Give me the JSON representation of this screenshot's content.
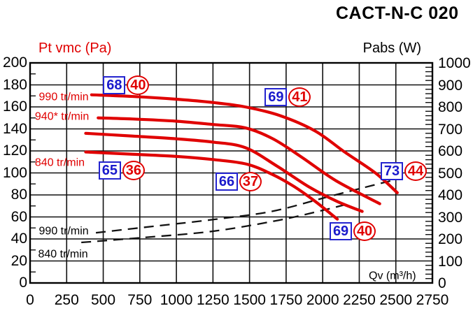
{
  "title": "CACT-N-C 020",
  "chart_data": {
    "type": "line",
    "grid": true,
    "x_axis": {
      "label": "Qv (m³/h)",
      "min": 0,
      "max": 2750,
      "ticks": [
        0,
        250,
        500,
        750,
        1000,
        1250,
        1500,
        1750,
        2000,
        2250,
        2500,
        2750
      ]
    },
    "y_left": {
      "label": "Pt vmc (Pa)",
      "min": 0,
      "max": 200,
      "ticks": [
        0,
        20,
        40,
        60,
        80,
        100,
        120,
        140,
        160,
        180,
        200
      ],
      "minor_step": 10
    },
    "y_right": {
      "label": "Pabs (W)",
      "min": 0,
      "max": 1000,
      "ticks": [
        0,
        100,
        200,
        300,
        400,
        500,
        600,
        700,
        800,
        900,
        1000
      ],
      "minor_step": 20
    },
    "fan_curves": [
      {
        "name": "990 tr/min",
        "color": "#e00000",
        "points": [
          [
            420,
            171
          ],
          [
            700,
            169.5
          ],
          [
            1000,
            167
          ],
          [
            1250,
            164
          ],
          [
            1470,
            160
          ],
          [
            1710,
            152
          ],
          [
            1950,
            138
          ],
          [
            2150,
            119
          ],
          [
            2360,
            100
          ],
          [
            2510,
            82
          ]
        ]
      },
      {
        "name": "940* tr/min",
        "color": "#e00000",
        "points": [
          [
            465,
            150
          ],
          [
            700,
            149
          ],
          [
            1000,
            147
          ],
          [
            1250,
            144
          ],
          [
            1470,
            141
          ],
          [
            1660,
            131
          ],
          [
            1860,
            114
          ],
          [
            2090,
            93
          ],
          [
            2390,
            72
          ]
        ]
      },
      {
        "name": "",
        "color": "#e00000",
        "points": [
          [
            380,
            136
          ],
          [
            700,
            133.5
          ],
          [
            1000,
            131
          ],
          [
            1250,
            128
          ],
          [
            1470,
            123
          ],
          [
            1690,
            106
          ],
          [
            1910,
            87
          ],
          [
            2100,
            74
          ],
          [
            2270,
            65
          ]
        ]
      },
      {
        "name": "840 tr/min",
        "color": "#e00000",
        "points": [
          [
            380,
            119
          ],
          [
            700,
            117
          ],
          [
            1000,
            115
          ],
          [
            1260,
            112
          ],
          [
            1480,
            108
          ],
          [
            1650,
            99
          ],
          [
            1800,
            88
          ],
          [
            1950,
            74
          ],
          [
            2100,
            58
          ]
        ]
      }
    ],
    "power_curves": [
      {
        "name": "990 tr/min",
        "color": "#111111",
        "style": "dashed",
        "points_w": [
          [
            450,
            228
          ],
          [
            850,
            258
          ],
          [
            1250,
            288
          ],
          [
            1650,
            325
          ],
          [
            2000,
            385
          ],
          [
            2250,
            428
          ],
          [
            2500,
            470
          ]
        ]
      },
      {
        "name": "840 tr/min",
        "color": "#111111",
        "style": "dashed",
        "points_w": [
          [
            350,
            184
          ],
          [
            750,
            205
          ],
          [
            1250,
            235
          ],
          [
            1700,
            285
          ],
          [
            2000,
            330
          ],
          [
            2150,
            355
          ]
        ]
      }
    ],
    "inline_labels": [
      {
        "text": "990 tr/min",
        "color": "#e00000",
        "qv": 60,
        "pa": 169
      },
      {
        "text": "940* tr/min",
        "color": "#e00000",
        "qv": 33,
        "pa": 151
      },
      {
        "text": "840 tr/min",
        "color": "#e00000",
        "qv": 33,
        "pa": 109
      },
      {
        "text": "990 tr/min",
        "color": "#000000",
        "qv": 60,
        "pa": 47
      },
      {
        "text": "840 tr/min",
        "color": "#000000",
        "qv": 55,
        "pa": 26
      },
      {
        "text": "Qv (m³/h)",
        "color": "#000000",
        "qv": 2315,
        "pa": 6.3
      }
    ],
    "db_labels": [
      {
        "box": "68",
        "circle": "40",
        "qv": 571,
        "pa": 179.4
      },
      {
        "box": "69",
        "circle": "41",
        "qv": 1676,
        "pa": 169.2
      },
      {
        "box": "65",
        "circle": "36",
        "qv": 540,
        "pa": 102.2
      },
      {
        "box": "66",
        "circle": "37",
        "qv": 1339,
        "pa": 92.1
      },
      {
        "box": "73",
        "circle": "44",
        "qv": 2468,
        "pa": 101.9
      },
      {
        "box": "69",
        "circle": "40",
        "qv": 2119,
        "pa": 47.3
      }
    ],
    "colors": {
      "curve_red": "#e00000",
      "label_blue": "#1a1acc",
      "grid_black": "#111111"
    }
  }
}
